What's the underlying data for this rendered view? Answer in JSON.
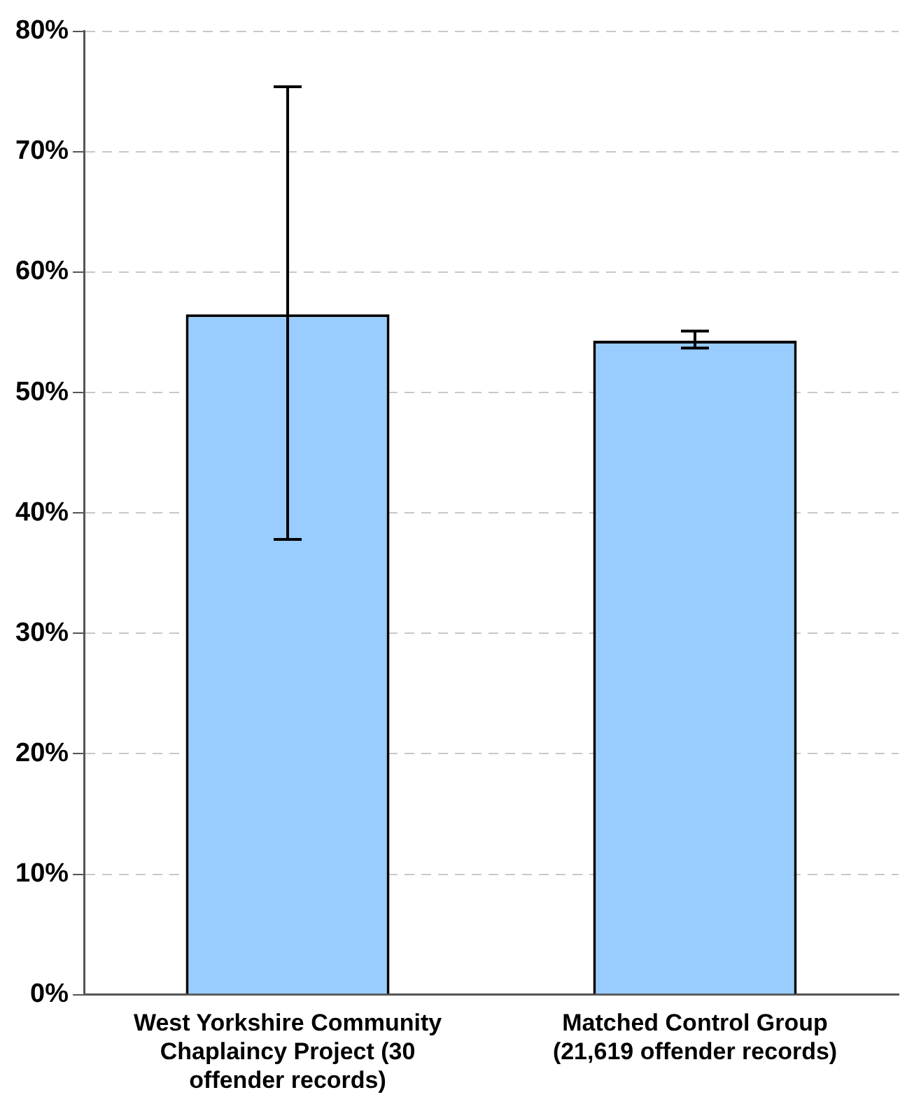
{
  "chart_data": {
    "type": "bar",
    "categories": [
      "West Yorkshire Community Chaplaincy Project (30 offender records)",
      "Matched Control Group (21,619 offender records)"
    ],
    "values": [
      56.5,
      54.3
    ],
    "errors": [
      [
        37.8,
        75.4
      ],
      [
        53.7,
        55.1
      ]
    ],
    "color": "#99ccff",
    "ylim": [
      0,
      80
    ],
    "yticks": [
      {
        "value": 0,
        "label": "0%"
      },
      {
        "value": 10,
        "label": "10%"
      },
      {
        "value": 20,
        "label": "20%"
      },
      {
        "value": 30,
        "label": "30%"
      },
      {
        "value": 40,
        "label": "40%"
      },
      {
        "value": 50,
        "label": "50%"
      },
      {
        "value": 60,
        "label": "60%"
      },
      {
        "value": 70,
        "label": "70%"
      },
      {
        "value": 80,
        "label": "80%"
      }
    ],
    "grid": "y"
  }
}
